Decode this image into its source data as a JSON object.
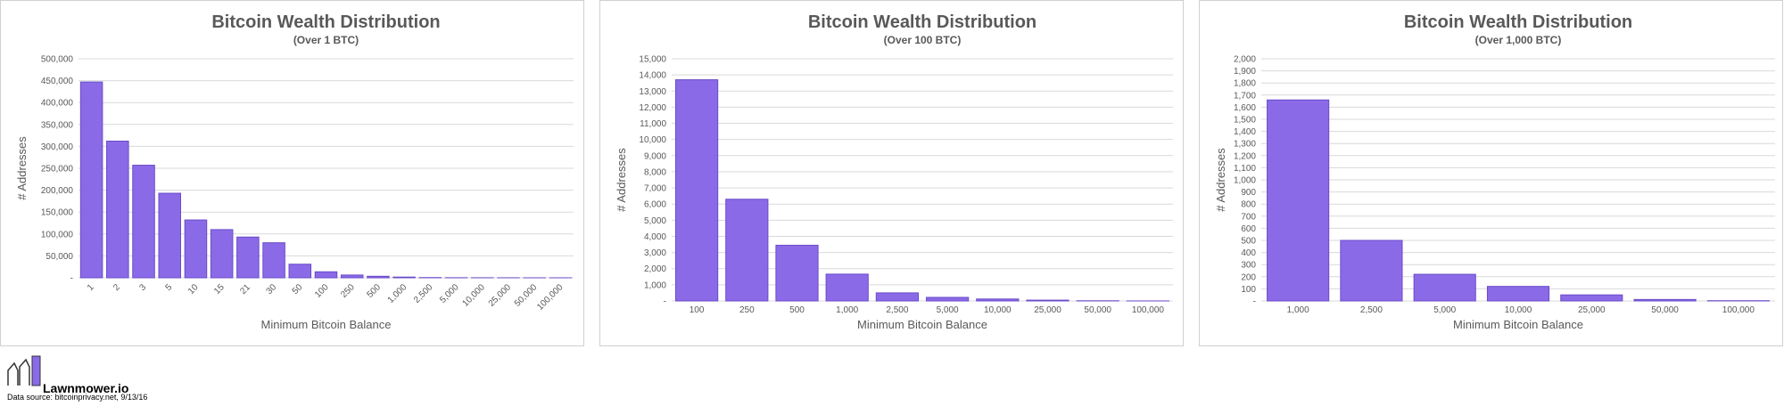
{
  "chart_data": [
    {
      "type": "bar",
      "title": "Bitcoin Wealth Distribution",
      "subtitle": "(Over 1 BTC)",
      "x_label": "Minimum Bitcoin Balance",
      "y_label": "# Addresses",
      "color": "#8b6ae8",
      "grid": true,
      "categories": [
        "1",
        "2",
        "3",
        "5",
        "10",
        "15",
        "21",
        "30",
        "50",
        "100",
        "250",
        "500",
        "1,000",
        "2,500",
        "5,000",
        "10,000",
        "25,000",
        "50,000",
        "100,000"
      ],
      "values": [
        447000,
        312000,
        257000,
        193000,
        132000,
        110000,
        93000,
        80000,
        31000,
        13700,
        6300,
        3450,
        1660,
        500,
        220,
        120,
        50,
        12,
        2
      ],
      "ylim": [
        0,
        500000
      ],
      "yticks": [
        {
          "value": 0,
          "label": "-"
        },
        {
          "value": 50000,
          "label": "50,000"
        },
        {
          "value": 100000,
          "label": "100,000"
        },
        {
          "value": 150000,
          "label": "150,000"
        },
        {
          "value": 200000,
          "label": "200,000"
        },
        {
          "value": 250000,
          "label": "250,000"
        },
        {
          "value": 300000,
          "label": "300,000"
        },
        {
          "value": 350000,
          "label": "350,000"
        },
        {
          "value": 400000,
          "label": "400,000"
        },
        {
          "value": 450000,
          "label": "450,000"
        },
        {
          "value": 500000,
          "label": "500,000"
        }
      ]
    },
    {
      "type": "bar",
      "title": "Bitcoin Wealth Distribution",
      "subtitle": "(Over 100 BTC)",
      "x_label": "Minimum Bitcoin Balance",
      "y_label": "# Addresses",
      "color": "#8b6ae8",
      "grid": true,
      "categories": [
        "100",
        "250",
        "500",
        "1,000",
        "2,500",
        "5,000",
        "10,000",
        "25,000",
        "50,000",
        "100,000"
      ],
      "values": [
        13700,
        6300,
        3450,
        1660,
        500,
        220,
        120,
        50,
        12,
        2
      ],
      "ylim": [
        0,
        15000
      ],
      "yticks": [
        {
          "value": 0,
          "label": "-"
        },
        {
          "value": 1000,
          "label": "1,000"
        },
        {
          "value": 2000,
          "label": "2,000"
        },
        {
          "value": 3000,
          "label": "3,000"
        },
        {
          "value": 4000,
          "label": "4,000"
        },
        {
          "value": 5000,
          "label": "5,000"
        },
        {
          "value": 6000,
          "label": "6,000"
        },
        {
          "value": 7000,
          "label": "7,000"
        },
        {
          "value": 8000,
          "label": "8,000"
        },
        {
          "value": 9000,
          "label": "9,000"
        },
        {
          "value": 10000,
          "label": "10,000"
        },
        {
          "value": 11000,
          "label": "11,000"
        },
        {
          "value": 12000,
          "label": "12,000"
        },
        {
          "value": 13000,
          "label": "13,000"
        },
        {
          "value": 14000,
          "label": "14,000"
        },
        {
          "value": 15000,
          "label": "15,000"
        }
      ]
    },
    {
      "type": "bar",
      "title": "Bitcoin Wealth Distribution",
      "subtitle": "(Over 1,000 BTC)",
      "x_label": "Minimum Bitcoin Balance",
      "y_label": "# Addresses",
      "color": "#8b6ae8",
      "grid": true,
      "categories": [
        "1,000",
        "2,500",
        "5,000",
        "10,000",
        "25,000",
        "50,000",
        "100,000"
      ],
      "values": [
        1660,
        500,
        220,
        120,
        50,
        12,
        2
      ],
      "ylim": [
        0,
        2000
      ],
      "yticks": [
        {
          "value": 0,
          "label": "-"
        },
        100,
        200,
        300,
        400,
        500,
        600,
        700,
        800,
        900,
        {
          "value": 1000,
          "label": "1,000"
        },
        {
          "value": 1100,
          "label": "1,100"
        },
        {
          "value": 1200,
          "label": "1,200"
        },
        {
          "value": 1300,
          "label": "1,300"
        },
        {
          "value": 1400,
          "label": "1,400"
        },
        {
          "value": 1500,
          "label": "1,500"
        },
        {
          "value": 1600,
          "label": "1,600"
        },
        {
          "value": 1700,
          "label": "1,700"
        },
        {
          "value": 1800,
          "label": "1,800"
        },
        {
          "value": 1900,
          "label": "1,900"
        },
        {
          "value": 2000,
          "label": "2,000"
        }
      ]
    }
  ],
  "footer": {
    "brand": "Lawnmower.io",
    "source": "Data source: bitcoinprivacy.net, 9/13/16"
  }
}
